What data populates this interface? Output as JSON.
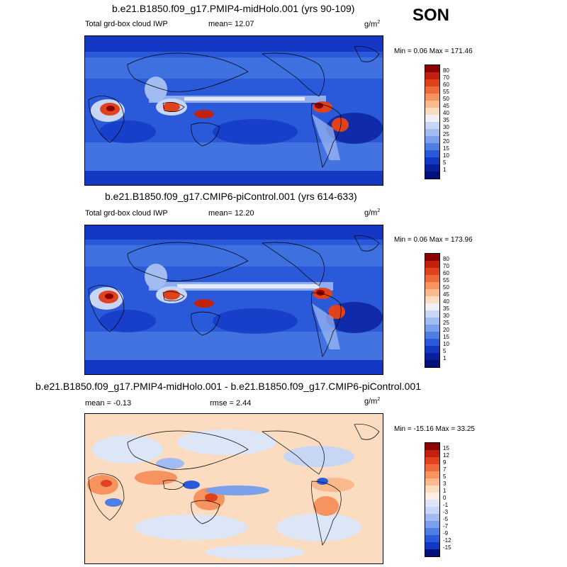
{
  "season": "SON",
  "panels": [
    {
      "title": "b.e21.B1850.f09_g17.PMIP4-midHolo.001 (yrs 90-109)",
      "left_label": "Total grd-box cloud IWP",
      "center_label": "mean=  12.07",
      "right_label": "",
      "units": "g/m",
      "units_sup": "2",
      "minmax": "Min =   0.06 Max = 171.46",
      "colorbar_labels": [
        "80",
        "70",
        "60",
        "55",
        "50",
        "45",
        "40",
        "35",
        "30",
        "25",
        "20",
        "15",
        "10",
        "5",
        "1"
      ],
      "colorbar_colors": [
        "#8b0000",
        "#c0220d",
        "#e0421c",
        "#ef6a3a",
        "#f6935e",
        "#f9b98b",
        "#fbdcc1",
        "#eef0f4",
        "#c7d6f5",
        "#a2bcf2",
        "#7aa0ec",
        "#4e7ee4",
        "#2a5ad9",
        "#1438c4",
        "#0a1f9c",
        "#00107a"
      ]
    },
    {
      "title": "b.e21.B1850.f09_g17.CMIP6-piControl.001 (yrs 614-633)",
      "left_label": "Total grd-box cloud IWP",
      "center_label": "mean=  12.20",
      "right_label": "",
      "units": "g/m",
      "units_sup": "2",
      "minmax": "Min =   0.06 Max = 173.96",
      "colorbar_labels": [
        "80",
        "70",
        "60",
        "55",
        "50",
        "45",
        "40",
        "35",
        "30",
        "25",
        "20",
        "15",
        "10",
        "5",
        "1"
      ],
      "colorbar_colors": [
        "#8b0000",
        "#c0220d",
        "#e0421c",
        "#ef6a3a",
        "#f6935e",
        "#f9b98b",
        "#fbdcc1",
        "#eef0f4",
        "#c7d6f5",
        "#a2bcf2",
        "#7aa0ec",
        "#4e7ee4",
        "#2a5ad9",
        "#1438c4",
        "#0a1f9c",
        "#00107a"
      ]
    },
    {
      "title": "b.e21.B1850.f09_g17.PMIP4-midHolo.001 - b.e21.B1850.f09_g17.CMIP6-piControl.001",
      "left_label": "mean =  -0.13",
      "center_label": "rmse =   2.44",
      "right_label": "",
      "units": "g/m",
      "units_sup": "2",
      "minmax": "Min = -15.16 Max =  33.25",
      "colorbar_labels": [
        "15",
        "12",
        "9",
        "7",
        "5",
        "3",
        "1",
        "0",
        "-1",
        "-3",
        "-5",
        "-7",
        "-9",
        "-12",
        "-15"
      ],
      "colorbar_colors": [
        "#8b0000",
        "#c0220d",
        "#e0421c",
        "#ef6a3a",
        "#f6935e",
        "#f9b98b",
        "#fbdcc1",
        "#fdefe4",
        "#dde6f7",
        "#c7d6f5",
        "#a2bcf2",
        "#7aa0ec",
        "#4e7ee4",
        "#2a5ad9",
        "#1438c4",
        "#00107a"
      ]
    }
  ]
}
